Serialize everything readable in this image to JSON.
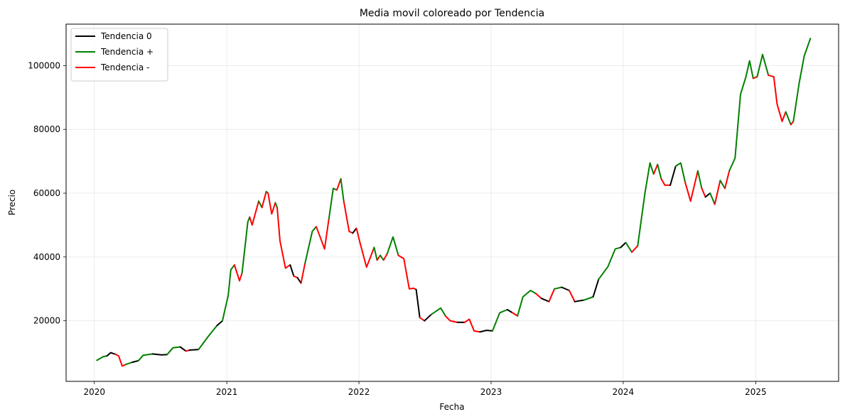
{
  "chart_data": {
    "type": "line",
    "title": "Media movil coloreado por Tendencia",
    "xlabel": "Fecha",
    "ylabel": "Precio",
    "x_type": "date",
    "xlim": [
      "2019-10-15",
      "2025-08-18"
    ],
    "ylim": [
      1000,
      113000
    ],
    "x_ticks": [
      {
        "label": "2020",
        "date": "2020-01-01"
      },
      {
        "label": "2021",
        "date": "2021-01-01"
      },
      {
        "label": "2022",
        "date": "2022-01-01"
      },
      {
        "label": "2023",
        "date": "2023-01-01"
      },
      {
        "label": "2024",
        "date": "2024-01-01"
      },
      {
        "label": "2025",
        "date": "2025-01-01"
      }
    ],
    "y_ticks": [
      20000,
      40000,
      60000,
      80000,
      100000
    ],
    "y_tick_labels": [
      "20000",
      "40000",
      "60000",
      "80000",
      "100000"
    ],
    "grid": true,
    "legend_position": "top-left",
    "series": [
      {
        "name": "Tendencia 0",
        "color": "#000000"
      },
      {
        "name": "Tendencia +",
        "color": "#008000"
      },
      {
        "name": "Tendencia -",
        "color": "#ff0000"
      }
    ],
    "points": [
      [
        "2020-01-08",
        7600,
        1
      ],
      [
        "2020-01-25",
        8700,
        1
      ],
      [
        "2020-02-05",
        9000,
        0
      ],
      [
        "2020-02-15",
        10000,
        0
      ],
      [
        "2020-02-28",
        9500,
        -1
      ],
      [
        "2020-03-08",
        9000,
        -1
      ],
      [
        "2020-03-18",
        5800,
        -1
      ],
      [
        "2020-03-28",
        6300,
        1
      ],
      [
        "2020-04-15",
        7000,
        0
      ],
      [
        "2020-05-02",
        7500,
        1
      ],
      [
        "2020-05-15",
        9200,
        1
      ],
      [
        "2020-06-10",
        9600,
        0
      ],
      [
        "2020-07-05",
        9300,
        0
      ],
      [
        "2020-07-20",
        9400,
        1
      ],
      [
        "2020-08-05",
        11500,
        1
      ],
      [
        "2020-08-25",
        11800,
        0
      ],
      [
        "2020-09-10",
        10500,
        -1
      ],
      [
        "2020-09-20",
        10800,
        0
      ],
      [
        "2020-10-15",
        11000,
        1
      ],
      [
        "2020-11-10",
        15000,
        1
      ],
      [
        "2020-12-05",
        18500,
        0
      ],
      [
        "2020-12-20",
        20000,
        1
      ],
      [
        "2021-01-05",
        28000,
        1
      ],
      [
        "2021-01-12",
        36000,
        1
      ],
      [
        "2021-01-22",
        37500,
        -1
      ],
      [
        "2021-02-05",
        32500,
        -1
      ],
      [
        "2021-02-12",
        35000,
        1
      ],
      [
        "2021-02-28",
        51000,
        1
      ],
      [
        "2021-03-05",
        52500,
        -1
      ],
      [
        "2021-03-12",
        50000,
        -1
      ],
      [
        "2021-03-30",
        57500,
        1
      ],
      [
        "2021-04-08",
        55500,
        -1
      ],
      [
        "2021-04-20",
        60500,
        1
      ],
      [
        "2021-04-25",
        60000,
        -1
      ],
      [
        "2021-05-05",
        53500,
        -1
      ],
      [
        "2021-05-15",
        57000,
        1
      ],
      [
        "2021-05-20",
        55500,
        -1
      ],
      [
        "2021-05-28",
        45000,
        -1
      ],
      [
        "2021-06-12",
        36500,
        -1
      ],
      [
        "2021-06-25",
        37500,
        0
      ],
      [
        "2021-07-05",
        34000,
        -1
      ],
      [
        "2021-07-15",
        33500,
        0
      ],
      [
        "2021-07-25",
        31800,
        -1
      ],
      [
        "2021-08-05",
        38000,
        1
      ],
      [
        "2021-08-25",
        48000,
        1
      ],
      [
        "2021-09-05",
        49500,
        -1
      ],
      [
        "2021-09-15",
        46500,
        -1
      ],
      [
        "2021-09-28",
        42500,
        -1
      ],
      [
        "2021-10-10",
        52000,
        1
      ],
      [
        "2021-10-22",
        61500,
        1
      ],
      [
        "2021-11-01",
        61000,
        -1
      ],
      [
        "2021-11-12",
        64500,
        1
      ],
      [
        "2021-11-20",
        57500,
        -1
      ],
      [
        "2021-12-05",
        48000,
        -1
      ],
      [
        "2021-12-15",
        47500,
        0
      ],
      [
        "2021-12-25",
        49000,
        -1
      ],
      [
        "2022-01-05",
        44000,
        -1
      ],
      [
        "2022-01-22",
        36800,
        -1
      ],
      [
        "2022-02-12",
        43000,
        1
      ],
      [
        "2022-02-20",
        39000,
        -1
      ],
      [
        "2022-03-01",
        40500,
        1
      ],
      [
        "2022-03-10",
        39000,
        -1
      ],
      [
        "2022-03-20",
        41000,
        1
      ],
      [
        "2022-04-05",
        46300,
        1
      ],
      [
        "2022-04-20",
        40500,
        -1
      ],
      [
        "2022-05-05",
        39500,
        -1
      ],
      [
        "2022-05-20",
        30000,
        -1
      ],
      [
        "2022-06-01",
        30200,
        -1
      ],
      [
        "2022-06-08",
        29800,
        0
      ],
      [
        "2022-06-18",
        21000,
        -1
      ],
      [
        "2022-07-01",
        20000,
        0
      ],
      [
        "2022-07-20",
        22000,
        1
      ],
      [
        "2022-08-15",
        24000,
        1
      ],
      [
        "2022-08-28",
        21500,
        -1
      ],
      [
        "2022-09-10",
        20000,
        -1
      ],
      [
        "2022-09-30",
        19500,
        0
      ],
      [
        "2022-10-20",
        19500,
        -1
      ],
      [
        "2022-11-02",
        20500,
        -1
      ],
      [
        "2022-11-15",
        16800,
        -1
      ],
      [
        "2022-12-01",
        16500,
        0
      ],
      [
        "2022-12-20",
        17000,
        0
      ],
      [
        "2023-01-05",
        16800,
        1
      ],
      [
        "2023-01-25",
        22500,
        1
      ],
      [
        "2023-02-15",
        23500,
        0
      ],
      [
        "2023-03-01",
        22500,
        -1
      ],
      [
        "2023-03-15",
        21500,
        1
      ],
      [
        "2023-03-30",
        27500,
        1
      ],
      [
        "2023-04-20",
        29500,
        1
      ],
      [
        "2023-05-05",
        28500,
        -1
      ],
      [
        "2023-05-20",
        27000,
        0
      ],
      [
        "2023-06-10",
        26000,
        -1
      ],
      [
        "2023-06-25",
        30000,
        1
      ],
      [
        "2023-07-15",
        30500,
        0
      ],
      [
        "2023-08-05",
        29500,
        -1
      ],
      [
        "2023-08-20",
        26000,
        0
      ],
      [
        "2023-09-15",
        26500,
        1
      ],
      [
        "2023-10-10",
        27500,
        0
      ],
      [
        "2023-10-25",
        33000,
        1
      ],
      [
        "2023-11-20",
        37000,
        1
      ],
      [
        "2023-12-10",
        42500,
        1
      ],
      [
        "2023-12-25",
        43000,
        0
      ],
      [
        "2024-01-08",
        44500,
        1
      ],
      [
        "2024-01-25",
        41500,
        -1
      ],
      [
        "2024-02-10",
        43500,
        1
      ],
      [
        "2024-03-01",
        60000,
        1
      ],
      [
        "2024-03-15",
        69500,
        1
      ],
      [
        "2024-03-25",
        66000,
        -1
      ],
      [
        "2024-04-05",
        69000,
        1
      ],
      [
        "2024-04-15",
        64500,
        -1
      ],
      [
        "2024-04-25",
        62500,
        -1
      ],
      [
        "2024-05-10",
        62500,
        0
      ],
      [
        "2024-05-25",
        68500,
        1
      ],
      [
        "2024-06-08",
        69500,
        1
      ],
      [
        "2024-06-20",
        63500,
        -1
      ],
      [
        "2024-07-05",
        57500,
        -1
      ],
      [
        "2024-07-25",
        67000,
        1
      ],
      [
        "2024-08-05",
        61500,
        -1
      ],
      [
        "2024-08-15",
        58800,
        0
      ],
      [
        "2024-08-28",
        60000,
        1
      ],
      [
        "2024-09-10",
        56500,
        -1
      ],
      [
        "2024-09-25",
        64000,
        1
      ],
      [
        "2024-10-08",
        61500,
        -1
      ],
      [
        "2024-10-20",
        67000,
        1
      ],
      [
        "2024-11-05",
        71000,
        1
      ],
      [
        "2024-11-20",
        91000,
        1
      ],
      [
        "2024-12-05",
        96500,
        1
      ],
      [
        "2024-12-15",
        101500,
        1
      ],
      [
        "2024-12-25",
        96000,
        -1
      ],
      [
        "2025-01-05",
        96500,
        1
      ],
      [
        "2025-01-20",
        103500,
        1
      ],
      [
        "2025-02-05",
        97000,
        -1
      ],
      [
        "2025-02-20",
        96500,
        -1
      ],
      [
        "2025-03-01",
        88000,
        -1
      ],
      [
        "2025-03-15",
        82500,
        -1
      ],
      [
        "2025-03-25",
        85500,
        1
      ],
      [
        "2025-04-08",
        81500,
        -1
      ],
      [
        "2025-04-15",
        82500,
        1
      ],
      [
        "2025-05-01",
        94500,
        1
      ],
      [
        "2025-05-15",
        103000,
        1
      ],
      [
        "2025-06-01",
        108500,
        1
      ]
    ]
  }
}
